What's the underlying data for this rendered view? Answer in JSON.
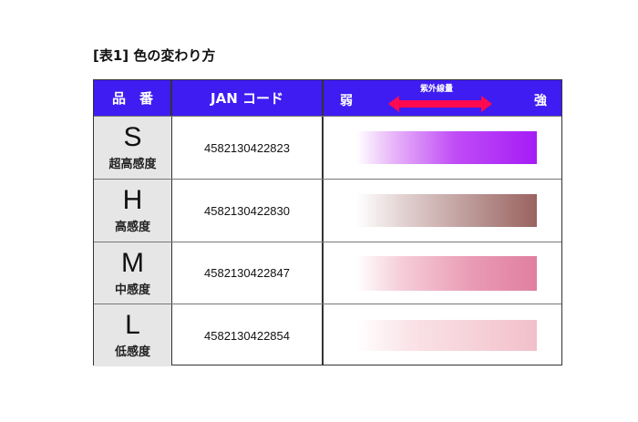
{
  "title": "[表1] 色の変わり方",
  "header": {
    "col_product": "品　番",
    "col_jan": "JAN コード",
    "uv_label": "紫外線量",
    "weak": "弱",
    "strong": "強",
    "arrow_color": "#ff0a50",
    "bg_color": "#3f1cf2"
  },
  "rows": [
    {
      "letter": "S",
      "sensitivity": "超高感度",
      "jan": "4582130422823",
      "color": "#a51cf5"
    },
    {
      "letter": "H",
      "sensitivity": "高感度",
      "jan": "4582130422830",
      "color": "#9a6360"
    },
    {
      "letter": "M",
      "sensitivity": "中感度",
      "jan": "4582130422847",
      "color": "#e07fa0"
    },
    {
      "letter": "L",
      "sensitivity": "低感度",
      "jan": "4582130422854",
      "color": "#f2c0ca"
    }
  ]
}
